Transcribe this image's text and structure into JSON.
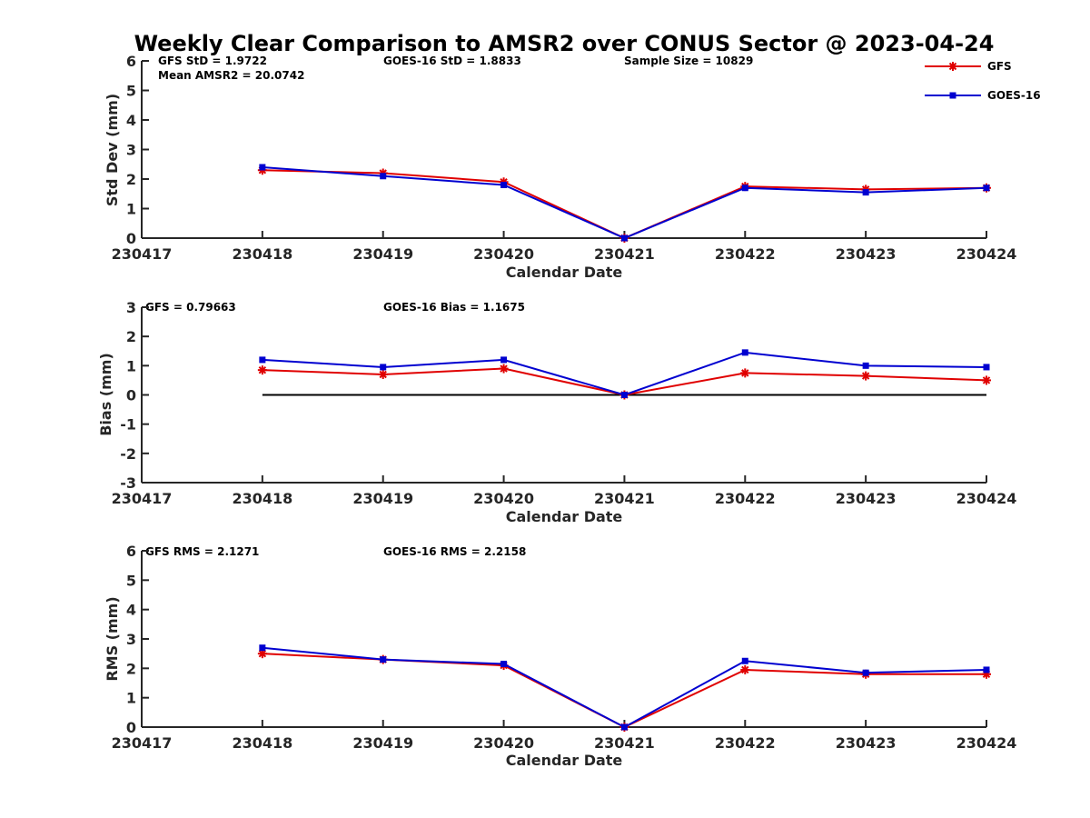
{
  "figure": {
    "title": "Weekly Clear Comparison to AMSR2 over CONUS Sector @ 2023-04-24"
  },
  "legend": {
    "placement": "top-right",
    "entries": [
      {
        "label": "GFS",
        "color": "#e00000",
        "marker": "asterisk"
      },
      {
        "label": "GOES-16",
        "color": "#0000d0",
        "marker": "square"
      }
    ]
  },
  "chart_data": [
    {
      "type": "line",
      "xlabel": "Calendar Date",
      "ylabel": "Std Dev (mm)",
      "x_ticks": [
        "230417",
        "230418",
        "230419",
        "230420",
        "230421",
        "230422",
        "230423",
        "230424"
      ],
      "x_range": [
        "230417",
        "230424"
      ],
      "ylim": [
        0,
        6
      ],
      "y_ticks": [
        "0",
        "1",
        "2",
        "3",
        "4",
        "5",
        "6"
      ],
      "grid": false,
      "zero_line": false,
      "categories": [
        "230418",
        "230419",
        "230420",
        "230421",
        "230422",
        "230423",
        "230424"
      ],
      "annotations": [
        "GFS StD = 1.9722",
        "Mean AMSR2 = 20.0742",
        "GOES-16 StD = 1.8833",
        "Sample Size = 10829"
      ],
      "series": [
        {
          "name": "GFS",
          "color": "#e00000",
          "marker": "asterisk",
          "values": [
            2.3,
            2.2,
            1.9,
            0.0,
            1.75,
            1.65,
            1.7
          ]
        },
        {
          "name": "GOES-16",
          "color": "#0000d0",
          "marker": "square",
          "values": [
            2.4,
            2.1,
            1.8,
            0.0,
            1.7,
            1.55,
            1.7
          ]
        }
      ]
    },
    {
      "type": "line",
      "xlabel": "Calendar Date",
      "ylabel": "Bias (mm)",
      "x_ticks": [
        "230417",
        "230418",
        "230419",
        "230420",
        "230421",
        "230422",
        "230423",
        "230424"
      ],
      "x_range": [
        "230417",
        "230424"
      ],
      "ylim": [
        -3,
        3
      ],
      "y_ticks": [
        "-3",
        "-2",
        "-1",
        "0",
        "1",
        "2",
        "3"
      ],
      "grid": false,
      "zero_line": true,
      "categories": [
        "230418",
        "230419",
        "230420",
        "230421",
        "230422",
        "230423",
        "230424"
      ],
      "annotations": [
        "GFS = 0.79663",
        "GOES-16 Bias  = 1.1675"
      ],
      "series": [
        {
          "name": "GFS",
          "color": "#e00000",
          "marker": "asterisk",
          "values": [
            0.85,
            0.7,
            0.9,
            0.0,
            0.75,
            0.65,
            0.5
          ]
        },
        {
          "name": "GOES-16",
          "color": "#0000d0",
          "marker": "square",
          "values": [
            1.2,
            0.95,
            1.2,
            0.0,
            1.45,
            1.0,
            0.95
          ]
        }
      ]
    },
    {
      "type": "line",
      "xlabel": "Calendar Date",
      "ylabel": "RMS (mm)",
      "x_ticks": [
        "230417",
        "230418",
        "230419",
        "230420",
        "230421",
        "230422",
        "230423",
        "230424"
      ],
      "x_range": [
        "230417",
        "230424"
      ],
      "ylim": [
        0,
        6
      ],
      "y_ticks": [
        "0",
        "1",
        "2",
        "3",
        "4",
        "5",
        "6"
      ],
      "grid": false,
      "zero_line": false,
      "categories": [
        "230418",
        "230419",
        "230420",
        "230421",
        "230422",
        "230423",
        "230424"
      ],
      "annotations": [
        "GFS RMS = 2.1271",
        "GOES-16 RMS = 2.2158"
      ],
      "series": [
        {
          "name": "GFS",
          "color": "#e00000",
          "marker": "asterisk",
          "values": [
            2.5,
            2.3,
            2.1,
            0.0,
            1.95,
            1.8,
            1.8
          ]
        },
        {
          "name": "GOES-16",
          "color": "#0000d0",
          "marker": "square",
          "values": [
            2.7,
            2.3,
            2.15,
            0.0,
            2.25,
            1.85,
            1.95
          ]
        }
      ]
    }
  ]
}
